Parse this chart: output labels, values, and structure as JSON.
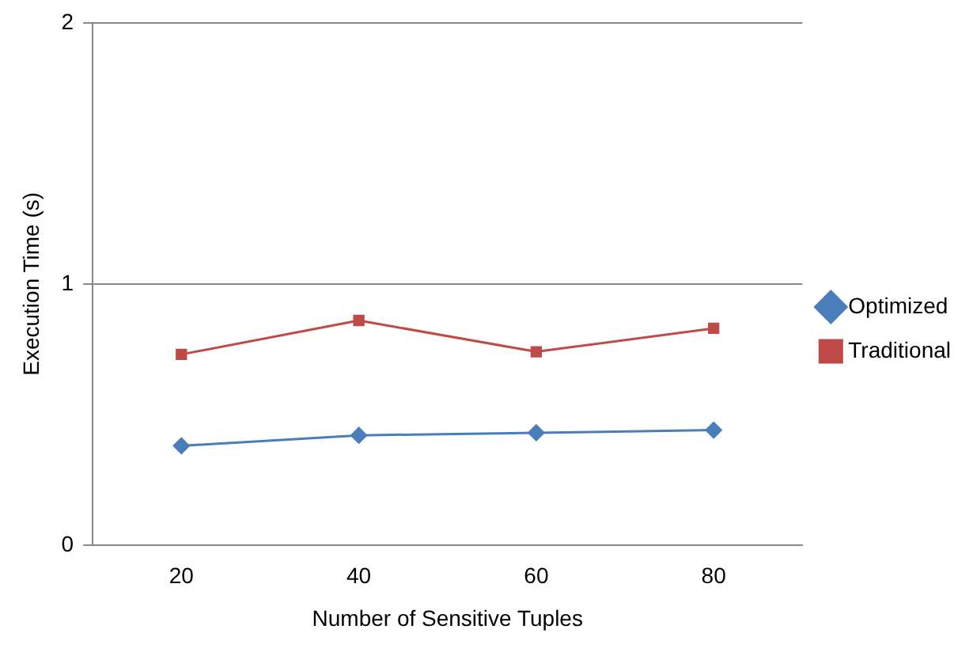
{
  "chart_data": {
    "type": "line",
    "xlabel": "Number of Sensitive Tuples",
    "ylabel": "Execution Time (s)",
    "categories": [
      "20",
      "40",
      "60",
      "80"
    ],
    "series": [
      {
        "name": "Optimized",
        "color": "#4a7ebb",
        "marker": "diamond",
        "values": [
          0.38,
          0.42,
          0.43,
          0.44
        ]
      },
      {
        "name": "Traditional",
        "color": "#be4b48",
        "marker": "square",
        "values": [
          0.73,
          0.86,
          0.74,
          0.83
        ]
      }
    ],
    "ylim": [
      0,
      2
    ],
    "yticks": [
      0,
      1,
      2
    ],
    "grid": "y",
    "legend": "right"
  }
}
